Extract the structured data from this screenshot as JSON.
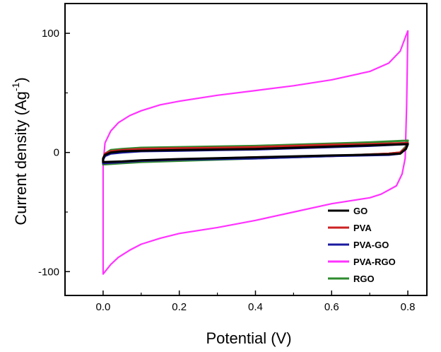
{
  "chart_data": {
    "type": "line",
    "title": "",
    "xlabel": "Potential (V)",
    "ylabel_main": "Current density (Ag",
    "ylabel_sup": "-1",
    "ylabel_close": ")",
    "xlim": [
      -0.1,
      0.85
    ],
    "ylim": [
      -120,
      125
    ],
    "x_ticks": [
      0.0,
      0.2,
      0.4,
      0.6,
      0.8
    ],
    "x_tick_labels": [
      "0.0",
      "0.2",
      "0.4",
      "0.6",
      "0.8"
    ],
    "y_ticks": [
      -100,
      0,
      100
    ],
    "y_tick_labels": [
      "-100",
      "0",
      "100"
    ],
    "legend_position": "bottom-right",
    "series": [
      {
        "name": "PVA-RGO",
        "color": "#ff33ff",
        "forward": [
          [
            0.0,
            -10
          ],
          [
            0.005,
            8
          ],
          [
            0.02,
            18
          ],
          [
            0.04,
            25
          ],
          [
            0.07,
            31
          ],
          [
            0.1,
            35
          ],
          [
            0.15,
            40
          ],
          [
            0.2,
            43
          ],
          [
            0.3,
            48
          ],
          [
            0.4,
            52
          ],
          [
            0.5,
            56
          ],
          [
            0.6,
            61
          ],
          [
            0.7,
            68
          ],
          [
            0.75,
            75
          ],
          [
            0.78,
            85
          ],
          [
            0.795,
            98
          ],
          [
            0.8,
            102
          ]
        ],
        "reverse": [
          [
            0.8,
            102
          ],
          [
            0.797,
            40
          ],
          [
            0.793,
            -5
          ],
          [
            0.785,
            -18
          ],
          [
            0.77,
            -28
          ],
          [
            0.73,
            -35
          ],
          [
            0.7,
            -38
          ],
          [
            0.6,
            -43
          ],
          [
            0.5,
            -50
          ],
          [
            0.4,
            -57
          ],
          [
            0.3,
            -63
          ],
          [
            0.2,
            -68
          ],
          [
            0.15,
            -72
          ],
          [
            0.1,
            -77
          ],
          [
            0.07,
            -82
          ],
          [
            0.04,
            -88
          ],
          [
            0.02,
            -94
          ],
          [
            0.0,
            -102
          ]
        ]
      },
      {
        "name": "RGO",
        "color": "#2e8b2e",
        "forward": [
          [
            0.0,
            -6
          ],
          [
            0.005,
            -1
          ],
          [
            0.02,
            2
          ],
          [
            0.05,
            3
          ],
          [
            0.1,
            4
          ],
          [
            0.2,
            4.5
          ],
          [
            0.3,
            5
          ],
          [
            0.4,
            5.5
          ],
          [
            0.5,
            6.5
          ],
          [
            0.6,
            7.5
          ],
          [
            0.7,
            8.5
          ],
          [
            0.8,
            10
          ]
        ],
        "reverse": [
          [
            0.8,
            10
          ],
          [
            0.795,
            5
          ],
          [
            0.78,
            0
          ],
          [
            0.75,
            -1
          ],
          [
            0.6,
            -3
          ],
          [
            0.4,
            -5
          ],
          [
            0.2,
            -7
          ],
          [
            0.1,
            -8
          ],
          [
            0.05,
            -9
          ],
          [
            0.0,
            -10
          ]
        ]
      },
      {
        "name": "PVA",
        "color": "#cc2222",
        "forward": [
          [
            0.0,
            -5
          ],
          [
            0.005,
            -1
          ],
          [
            0.02,
            1
          ],
          [
            0.05,
            2
          ],
          [
            0.1,
            3
          ],
          [
            0.2,
            3.5
          ],
          [
            0.3,
            4
          ],
          [
            0.4,
            4.5
          ],
          [
            0.5,
            5.5
          ],
          [
            0.6,
            6.5
          ],
          [
            0.7,
            7
          ],
          [
            0.8,
            8
          ]
        ],
        "reverse": [
          [
            0.8,
            8
          ],
          [
            0.795,
            4
          ],
          [
            0.78,
            0
          ],
          [
            0.75,
            -1
          ],
          [
            0.6,
            -3
          ],
          [
            0.4,
            -4
          ],
          [
            0.2,
            -6
          ],
          [
            0.1,
            -7
          ],
          [
            0.05,
            -8
          ],
          [
            0.0,
            -9
          ]
        ]
      },
      {
        "name": "PVA-GO",
        "color": "#1a1aa0",
        "forward": [
          [
            0.0,
            -6
          ],
          [
            0.005,
            -3
          ],
          [
            0.02,
            -1
          ],
          [
            0.05,
            0
          ],
          [
            0.1,
            1
          ],
          [
            0.2,
            1.5
          ],
          [
            0.3,
            2
          ],
          [
            0.4,
            2.5
          ],
          [
            0.5,
            3.5
          ],
          [
            0.6,
            4.5
          ],
          [
            0.7,
            5.5
          ],
          [
            0.8,
            7
          ]
        ],
        "reverse": [
          [
            0.8,
            7
          ],
          [
            0.795,
            3
          ],
          [
            0.78,
            -1
          ],
          [
            0.75,
            -2
          ],
          [
            0.6,
            -3
          ],
          [
            0.4,
            -5
          ],
          [
            0.2,
            -6
          ],
          [
            0.1,
            -7
          ],
          [
            0.05,
            -8
          ],
          [
            0.0,
            -9
          ]
        ]
      },
      {
        "name": "GO",
        "color": "#000000",
        "forward": [
          [
            0.0,
            -5
          ],
          [
            0.005,
            -2
          ],
          [
            0.02,
            0
          ],
          [
            0.05,
            1
          ],
          [
            0.1,
            1.5
          ],
          [
            0.2,
            2
          ],
          [
            0.3,
            2.5
          ],
          [
            0.4,
            3
          ],
          [
            0.5,
            4
          ],
          [
            0.6,
            5
          ],
          [
            0.7,
            6
          ],
          [
            0.8,
            7
          ]
        ],
        "reverse": [
          [
            0.8,
            7
          ],
          [
            0.795,
            3
          ],
          [
            0.78,
            -1
          ],
          [
            0.75,
            -1.5
          ],
          [
            0.6,
            -2.5
          ],
          [
            0.4,
            -4
          ],
          [
            0.2,
            -5.5
          ],
          [
            0.1,
            -6.5
          ],
          [
            0.05,
            -7.5
          ],
          [
            0.0,
            -8
          ]
        ]
      }
    ],
    "legend_order": [
      "GO",
      "PVA",
      "PVA-GO",
      "PVA-RGO",
      "RGO"
    ]
  }
}
